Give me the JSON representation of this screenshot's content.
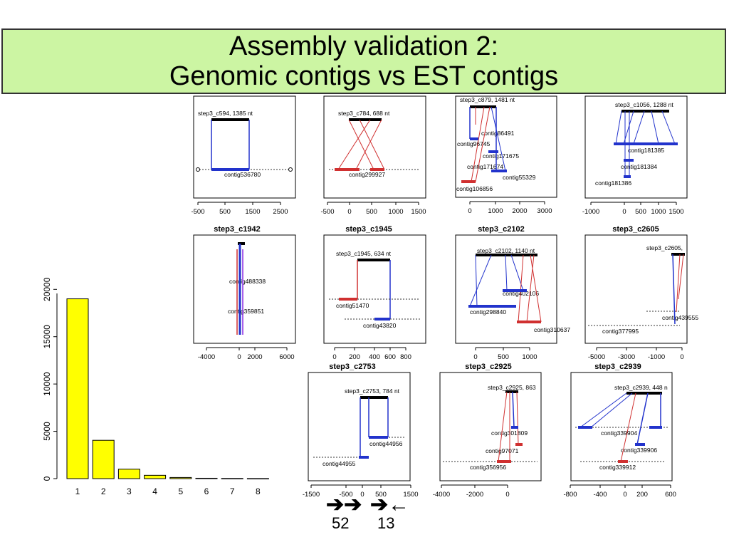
{
  "title": {
    "line1": "Assembly validation 2:",
    "line2": "Genomic contigs vs EST contigs"
  },
  "chart_data": {
    "type": "bar",
    "categories": [
      "1",
      "2",
      "3",
      "4",
      "5",
      "6",
      "7",
      "8"
    ],
    "values": [
      19000,
      4050,
      1000,
      350,
      120,
      40,
      20,
      10
    ],
    "ylim": [
      0,
      21000
    ],
    "yticks": [
      "0",
      "5000",
      "10000",
      "15000",
      "20000"
    ],
    "bar_color": "#ffff00"
  },
  "panels": [
    {
      "title": "",
      "header": "step3_c594, 1385 nt",
      "contigs": [
        "contig536780"
      ],
      "xticks": [
        "-500",
        "500",
        "1500",
        "2500"
      ]
    },
    {
      "title": "",
      "header": "step3_c784, 688 nt",
      "contigs": [
        "contig299927"
      ],
      "xticks": [
        "-500",
        "0",
        "500",
        "1000",
        "1500"
      ]
    },
    {
      "title": "",
      "header": "step3_c879, 1481 nt",
      "contigs": [
        "contig86491",
        "contig96745",
        "contig171675",
        "contig171674",
        "contig55329",
        "contig106856"
      ],
      "xticks": [
        "0",
        "1000",
        "2000",
        "3000"
      ]
    },
    {
      "title": "",
      "header": "step3_c1056, 1288 nt",
      "contigs": [
        "contig181385",
        "contig181384",
        "contig181386"
      ],
      "xticks": [
        "-1000",
        "0",
        "500",
        "1000",
        "1500"
      ]
    },
    {
      "title": "step3_c1942",
      "header": "",
      "contigs": [
        "contig488338",
        "contig359851"
      ],
      "xticks": [
        "-4000",
        "0",
        "2000",
        "6000"
      ]
    },
    {
      "title": "step3_c1945",
      "header": "step3_c1945, 634 nt",
      "contigs": [
        "contig51470",
        "contig43820"
      ],
      "xticks": [
        "0",
        "200",
        "400",
        "600",
        "800"
      ]
    },
    {
      "title": "step3_c2102",
      "header": "step3_c2102, 1140 nt",
      "contigs": [
        "contig402106",
        "contig298840",
        "contig310637"
      ],
      "xticks": [
        "0",
        "500",
        "1000"
      ]
    },
    {
      "title": "step3_c2605",
      "header": "step3_c2605,",
      "contigs": [
        "contig439555",
        "contig377995"
      ],
      "xticks": [
        "-5000",
        "-3000",
        "-1000",
        "0"
      ]
    },
    {
      "title": "step3_c2753",
      "header": "step3_c2753, 784 nt",
      "contigs": [
        "contig44956",
        "contig44955"
      ],
      "xticks": [
        "-1500",
        "-500",
        "0",
        "500",
        "1500"
      ]
    },
    {
      "title": "step3_c2925",
      "header": "step3_c2925, 863",
      "contigs": [
        "contig301809",
        "contig97071",
        "contig356956"
      ],
      "xticks": [
        "-4000",
        "-2000",
        "0"
      ]
    },
    {
      "title": "step3_c2939",
      "header": "step3_c2939, 448 n",
      "contigs": [
        "contig339904",
        "contig339906",
        "contig339912"
      ],
      "xticks": [
        "-800",
        "-400",
        "0",
        "200",
        "600"
      ]
    }
  ],
  "legend": {
    "same_arrows": "➔➔",
    "opposite_arrows": "➔←",
    "same_count": "52",
    "opposite_count": "13"
  }
}
